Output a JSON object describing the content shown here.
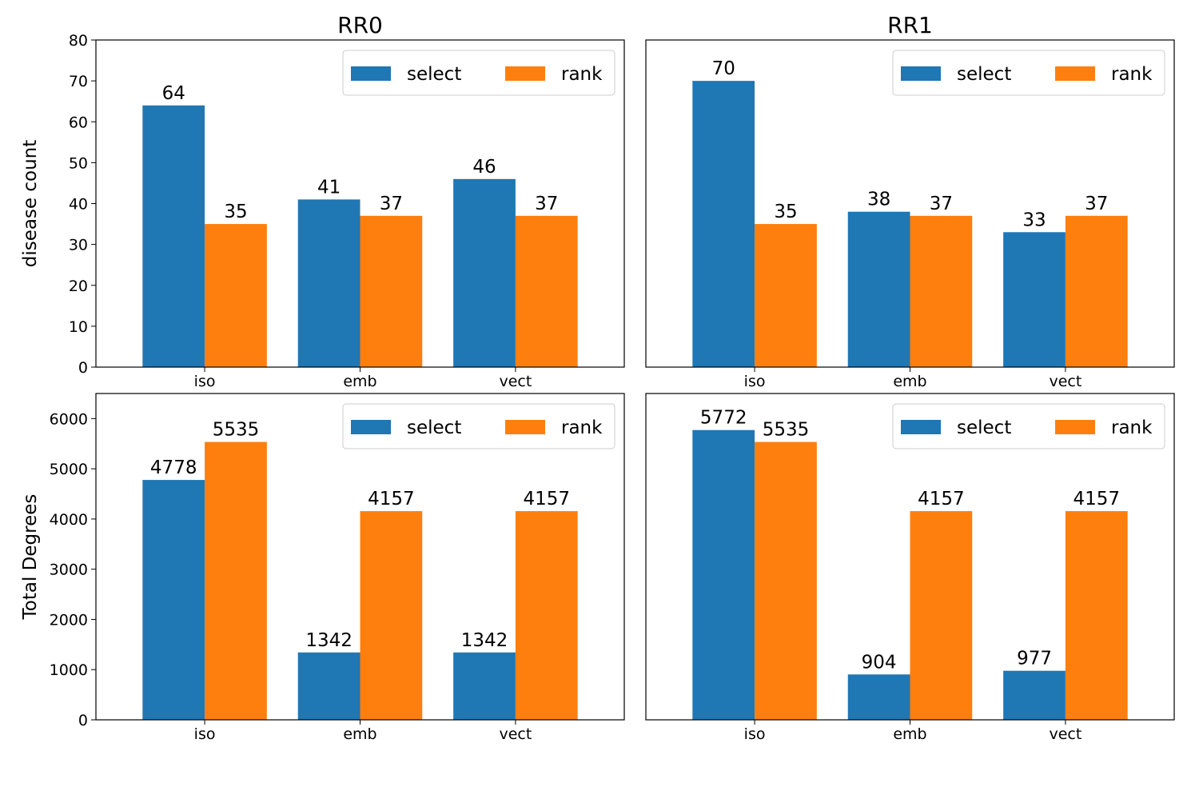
{
  "colors": {
    "select": "#1f77b4",
    "rank": "#ff7f0e"
  },
  "chart_data": [
    {
      "type": "bar",
      "title": "RR0",
      "xlabel": "",
      "ylabel": "disease count",
      "categories": [
        "iso",
        "emb",
        "vect"
      ],
      "series": [
        {
          "name": "select",
          "values": [
            64,
            41,
            46
          ]
        },
        {
          "name": "rank",
          "values": [
            35,
            37,
            37
          ]
        }
      ],
      "ylim": [
        0,
        80
      ],
      "yticks": [
        0,
        10,
        20,
        30,
        40,
        50,
        60,
        70,
        80
      ],
      "show_yticks": true,
      "legend": "top-right",
      "grid": false
    },
    {
      "type": "bar",
      "title": "RR1",
      "xlabel": "",
      "ylabel": "",
      "categories": [
        "iso",
        "emb",
        "vect"
      ],
      "series": [
        {
          "name": "select",
          "values": [
            70,
            38,
            33
          ]
        },
        {
          "name": "rank",
          "values": [
            35,
            37,
            37
          ]
        }
      ],
      "ylim": [
        0,
        80
      ],
      "yticks": [],
      "show_yticks": false,
      "legend": "top-right",
      "grid": false
    },
    {
      "type": "bar",
      "title": "",
      "xlabel": "",
      "ylabel": "Total Degrees",
      "categories": [
        "iso",
        "emb",
        "vect"
      ],
      "series": [
        {
          "name": "select",
          "values": [
            4778,
            1342,
            1342
          ]
        },
        {
          "name": "rank",
          "values": [
            5535,
            4157,
            4157
          ]
        }
      ],
      "ylim": [
        0,
        6500
      ],
      "yticks": [
        0,
        1000,
        2000,
        3000,
        4000,
        5000,
        6000
      ],
      "show_yticks": true,
      "legend": "top-right",
      "grid": false
    },
    {
      "type": "bar",
      "title": "",
      "xlabel": "",
      "ylabel": "",
      "categories": [
        "iso",
        "emb",
        "vect"
      ],
      "series": [
        {
          "name": "select",
          "values": [
            5772,
            904,
            977
          ]
        },
        {
          "name": "rank",
          "values": [
            5535,
            4157,
            4157
          ]
        }
      ],
      "ylim": [
        0,
        6500
      ],
      "yticks": [],
      "show_yticks": false,
      "legend": "top-right",
      "grid": false
    }
  ]
}
